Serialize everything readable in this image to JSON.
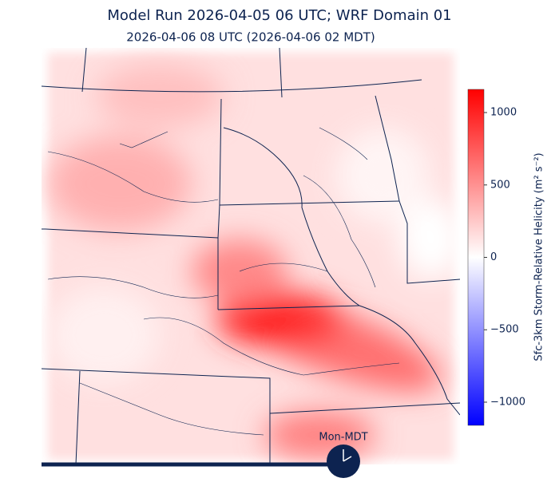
{
  "header": {
    "title": "Model Run 2026-04-05 06 UTC; WRF Domain 01",
    "subtitle": "2026-04-06 08 UTC  (2026-04-06 02 MDT)"
  },
  "colorbar": {
    "label": "Sfc-3km Storm-Relative Helicity (m² s⁻²)",
    "lim": [
      -1160,
      1160
    ],
    "ticks": [
      {
        "value": 1000,
        "label": "1000"
      },
      {
        "value": 500,
        "label": "500"
      },
      0,
      {
        "value": -500,
        "label": "−500"
      },
      {
        "value": -1000,
        "label": "−1000"
      }
    ],
    "colors": [
      "#0000ff",
      "#ffffff",
      "#ff0000"
    ]
  },
  "clock": {
    "label": "Mon-MDT"
  }
}
